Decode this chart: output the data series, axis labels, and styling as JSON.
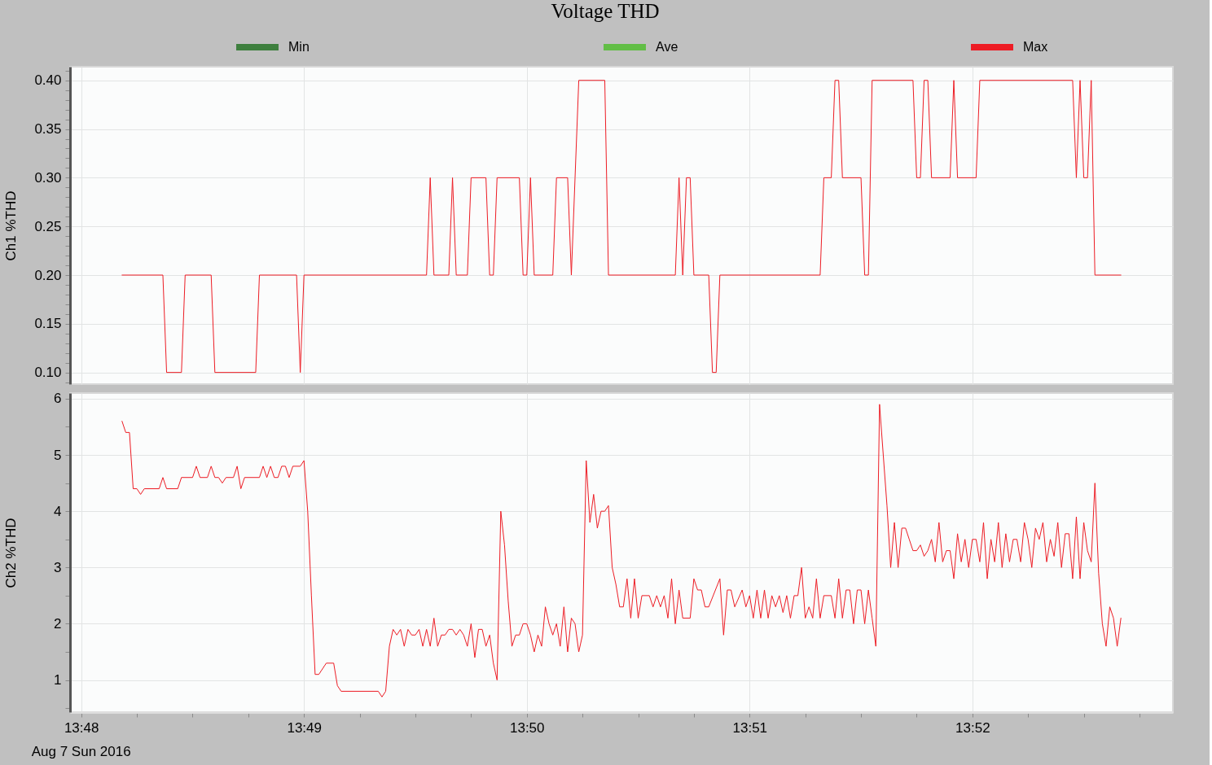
{
  "chart_data": [
    {
      "type": "line",
      "title": "Voltage THD",
      "ylabel": "Ch1 %THD",
      "x": [
        "2016-08-07T13:48:11",
        "2016-08-07T13:48:22",
        "2016-08-07T13:48:23",
        "2016-08-07T13:48:27",
        "2016-08-07T13:48:28",
        "2016-08-07T13:48:35",
        "2016-08-07T13:48:36",
        "2016-08-07T13:48:47",
        "2016-08-07T13:48:48",
        "2016-08-07T13:48:58",
        "2016-08-07T13:48:59",
        "2016-08-07T13:49:00",
        "2016-08-07T13:49:33",
        "2016-08-07T13:49:34",
        "2016-08-07T13:49:35",
        "2016-08-07T13:49:39",
        "2016-08-07T13:49:40",
        "2016-08-07T13:49:41",
        "2016-08-07T13:49:44",
        "2016-08-07T13:49:45",
        "2016-08-07T13:49:49",
        "2016-08-07T13:49:50",
        "2016-08-07T13:49:51",
        "2016-08-07T13:49:52",
        "2016-08-07T13:49:58",
        "2016-08-07T13:49:59",
        "2016-08-07T13:50:00",
        "2016-08-07T13:50:01",
        "2016-08-07T13:50:02",
        "2016-08-07T13:50:07",
        "2016-08-07T13:50:08",
        "2016-08-07T13:50:11",
        "2016-08-07T13:50:12",
        "2016-08-07T13:50:13",
        "2016-08-07T13:50:14",
        "2016-08-07T13:50:21",
        "2016-08-07T13:50:22",
        "2016-08-07T13:50:40",
        "2016-08-07T13:50:41",
        "2016-08-07T13:50:42",
        "2016-08-07T13:50:43",
        "2016-08-07T13:50:44",
        "2016-08-07T13:50:45",
        "2016-08-07T13:50:49",
        "2016-08-07T13:50:50",
        "2016-08-07T13:50:51",
        "2016-08-07T13:50:52",
        "2016-08-07T13:51:19",
        "2016-08-07T13:51:20",
        "2016-08-07T13:51:22",
        "2016-08-07T13:51:23",
        "2016-08-07T13:51:24",
        "2016-08-07T13:51:25",
        "2016-08-07T13:51:30",
        "2016-08-07T13:51:31",
        "2016-08-07T13:51:32",
        "2016-08-07T13:51:33",
        "2016-08-07T13:51:44",
        "2016-08-07T13:51:45",
        "2016-08-07T13:51:46",
        "2016-08-07T13:51:47",
        "2016-08-07T13:51:48",
        "2016-08-07T13:51:49",
        "2016-08-07T13:51:54",
        "2016-08-07T13:51:55",
        "2016-08-07T13:51:56",
        "2016-08-07T13:52:01",
        "2016-08-07T13:52:02",
        "2016-08-07T13:52:27",
        "2016-08-07T13:52:28",
        "2016-08-07T13:52:29",
        "2016-08-07T13:52:30",
        "2016-08-07T13:52:31",
        "2016-08-07T13:52:32",
        "2016-08-07T13:52:33",
        "2016-08-07T13:52:40"
      ],
      "series": [
        {
          "name": "Min",
          "color": "#3e7f3e",
          "values": [
            null,
            null,
            null,
            null,
            null,
            null,
            null,
            null,
            null,
            null,
            null,
            null,
            null,
            null,
            null,
            null,
            null,
            null,
            null,
            null,
            null,
            null,
            null,
            null,
            null,
            null,
            null,
            null,
            null,
            null,
            null,
            null,
            null,
            null,
            null,
            null,
            null,
            null,
            null,
            null,
            null,
            null,
            null,
            null,
            null,
            null,
            null,
            null,
            null,
            null,
            null,
            null,
            null,
            null,
            null,
            null,
            null,
            null,
            null,
            null,
            null,
            null,
            null,
            null,
            null,
            null,
            null,
            null,
            null,
            null,
            null,
            null,
            null,
            null,
            null,
            null
          ]
        },
        {
          "name": "Ave",
          "color": "#62be46",
          "values": [
            null,
            null,
            null,
            null,
            null,
            null,
            null,
            null,
            null,
            null,
            null,
            null,
            null,
            null,
            null,
            null,
            null,
            null,
            null,
            null,
            null,
            null,
            null,
            null,
            null,
            null,
            null,
            null,
            null,
            null,
            null,
            null,
            null,
            null,
            null,
            null,
            null,
            null,
            null,
            null,
            null,
            null,
            null,
            null,
            null,
            null,
            null,
            null,
            null,
            null,
            null,
            null,
            null,
            null,
            null,
            null,
            null,
            null,
            null,
            null,
            null,
            null,
            null,
            null,
            null,
            null,
            null,
            null,
            null,
            null,
            null,
            null,
            null,
            null,
            null,
            null
          ]
        },
        {
          "name": "Max",
          "color": "#ed1c24",
          "values": [
            0.2,
            0.2,
            0.1,
            0.1,
            0.2,
            0.2,
            0.1,
            0.1,
            0.2,
            0.2,
            0.1,
            0.2,
            0.2,
            0.3,
            0.2,
            0.2,
            0.3,
            0.2,
            0.2,
            0.3,
            0.3,
            0.2,
            0.2,
            0.3,
            0.3,
            0.2,
            0.2,
            0.3,
            0.2,
            0.2,
            0.3,
            0.3,
            0.2,
            0.3,
            0.4,
            0.4,
            0.2,
            0.2,
            0.3,
            0.2,
            0.3,
            0.3,
            0.2,
            0.2,
            0.1,
            0.1,
            0.2,
            0.2,
            0.3,
            0.3,
            0.4,
            0.4,
            0.3,
            0.3,
            0.2,
            0.2,
            0.4,
            0.4,
            0.3,
            0.3,
            0.4,
            0.4,
            0.3,
            0.3,
            0.4,
            0.3,
            0.3,
            0.4,
            0.4,
            0.3,
            0.4,
            0.3,
            0.3,
            0.4,
            0.2,
            0.2
          ]
        }
      ],
      "xlim": [
        "2016-08-07T13:47:57",
        "2016-08-07T13:52:54"
      ],
      "xticks": [
        {
          "value": "2016-08-07T13:48:00",
          "label": null
        },
        {
          "value": "2016-08-07T13:49:00",
          "label": null
        },
        {
          "value": "2016-08-07T13:50:00",
          "label": null
        },
        {
          "value": "2016-08-07T13:51:00",
          "label": null
        },
        {
          "value": "2016-08-07T13:52:00",
          "label": null
        }
      ],
      "ylim": [
        0.088,
        0.414
      ],
      "yticks": [
        {
          "value": 0.09,
          "label": null
        },
        {
          "value": 0.1,
          "label": "0.10"
        },
        {
          "value": 0.11,
          "label": null
        },
        {
          "value": 0.12,
          "label": null
        },
        {
          "value": 0.13,
          "label": null
        },
        {
          "value": 0.14,
          "label": null
        },
        {
          "value": 0.15,
          "label": "0.15"
        },
        {
          "value": 0.16,
          "label": null
        },
        {
          "value": 0.17,
          "label": null
        },
        {
          "value": 0.18,
          "label": null
        },
        {
          "value": 0.19,
          "label": null
        },
        {
          "value": 0.2,
          "label": "0.20"
        },
        {
          "value": 0.21,
          "label": null
        },
        {
          "value": 0.22,
          "label": null
        },
        {
          "value": 0.23,
          "label": null
        },
        {
          "value": 0.24,
          "label": null
        },
        {
          "value": 0.25,
          "label": "0.25"
        },
        {
          "value": 0.26,
          "label": null
        },
        {
          "value": 0.27,
          "label": null
        },
        {
          "value": 0.28,
          "label": null
        },
        {
          "value": 0.29,
          "label": null
        },
        {
          "value": 0.3,
          "label": "0.30"
        },
        {
          "value": 0.31,
          "label": null
        },
        {
          "value": 0.32,
          "label": null
        },
        {
          "value": 0.33,
          "label": null
        },
        {
          "value": 0.34,
          "label": null
        },
        {
          "value": 0.35,
          "label": "0.35"
        },
        {
          "value": 0.36,
          "label": null
        },
        {
          "value": 0.37,
          "label": null
        },
        {
          "value": 0.38,
          "label": null
        },
        {
          "value": 0.39,
          "label": null
        },
        {
          "value": 0.4,
          "label": "0.40"
        },
        {
          "value": 0.41,
          "label": null
        }
      ],
      "grid": true,
      "legend": "top",
      "tick_labels": "y"
    },
    {
      "type": "line",
      "ylabel": "Ch2 %THD",
      "annotations": [
        "Aug 7 Sun 2016"
      ],
      "x": [
        "2016-08-07T13:48:11",
        "2016-08-07T13:48:12",
        "2016-08-07T13:48:13",
        "2016-08-07T13:48:14",
        "2016-08-07T13:48:15",
        "2016-08-07T13:48:16",
        "2016-08-07T13:48:17",
        "2016-08-07T13:48:21",
        "2016-08-07T13:48:22",
        "2016-08-07T13:48:23",
        "2016-08-07T13:48:26",
        "2016-08-07T13:48:27",
        "2016-08-07T13:48:30",
        "2016-08-07T13:48:31",
        "2016-08-07T13:48:32",
        "2016-08-07T13:48:34",
        "2016-08-07T13:48:35",
        "2016-08-07T13:48:36",
        "2016-08-07T13:48:37",
        "2016-08-07T13:48:38",
        "2016-08-07T13:48:39",
        "2016-08-07T13:48:41",
        "2016-08-07T13:48:42",
        "2016-08-07T13:48:43",
        "2016-08-07T13:48:44",
        "2016-08-07T13:48:48",
        "2016-08-07T13:48:49",
        "2016-08-07T13:48:50",
        "2016-08-07T13:48:51",
        "2016-08-07T13:48:52",
        "2016-08-07T13:48:53",
        "2016-08-07T13:48:54",
        "2016-08-07T13:48:55",
        "2016-08-07T13:48:56",
        "2016-08-07T13:48:57",
        "2016-08-07T13:48:59",
        "2016-08-07T13:49:00",
        "2016-08-07T13:49:01",
        "2016-08-07T13:49:02",
        "2016-08-07T13:49:03",
        "2016-08-07T13:49:04",
        "2016-08-07T13:49:06",
        "2016-08-07T13:49:08",
        "2016-08-07T13:49:09",
        "2016-08-07T13:49:10",
        "2016-08-07T13:49:20",
        "2016-08-07T13:49:21",
        "2016-08-07T13:49:22",
        "2016-08-07T13:49:23",
        "2016-08-07T13:49:24",
        "2016-08-07T13:49:25",
        "2016-08-07T13:49:26",
        "2016-08-07T13:49:27",
        "2016-08-07T13:49:28",
        "2016-08-07T13:49:29",
        "2016-08-07T13:49:30",
        "2016-08-07T13:49:31",
        "2016-08-07T13:49:32",
        "2016-08-07T13:49:33",
        "2016-08-07T13:49:34",
        "2016-08-07T13:49:35",
        "2016-08-07T13:49:36",
        "2016-08-07T13:49:37",
        "2016-08-07T13:49:38",
        "2016-08-07T13:49:39",
        "2016-08-07T13:49:40",
        "2016-08-07T13:49:41",
        "2016-08-07T13:49:42",
        "2016-08-07T13:49:43",
        "2016-08-07T13:49:44",
        "2016-08-07T13:49:45",
        "2016-08-07T13:49:46",
        "2016-08-07T13:49:47",
        "2016-08-07T13:49:48",
        "2016-08-07T13:49:49",
        "2016-08-07T13:49:50",
        "2016-08-07T13:49:51",
        "2016-08-07T13:49:52",
        "2016-08-07T13:49:53",
        "2016-08-07T13:49:54",
        "2016-08-07T13:49:55",
        "2016-08-07T13:49:56",
        "2016-08-07T13:49:57",
        "2016-08-07T13:49:58",
        "2016-08-07T13:49:59",
        "2016-08-07T13:50:00",
        "2016-08-07T13:50:01",
        "2016-08-07T13:50:02",
        "2016-08-07T13:50:03",
        "2016-08-07T13:50:04",
        "2016-08-07T13:50:05",
        "2016-08-07T13:50:06",
        "2016-08-07T13:50:07",
        "2016-08-07T13:50:08",
        "2016-08-07T13:50:09",
        "2016-08-07T13:50:10",
        "2016-08-07T13:50:11",
        "2016-08-07T13:50:12",
        "2016-08-07T13:50:13",
        "2016-08-07T13:50:14",
        "2016-08-07T13:50:15",
        "2016-08-07T13:50:16",
        "2016-08-07T13:50:17",
        "2016-08-07T13:50:18",
        "2016-08-07T13:50:19",
        "2016-08-07T13:50:20",
        "2016-08-07T13:50:21",
        "2016-08-07T13:50:22",
        "2016-08-07T13:50:23",
        "2016-08-07T13:50:24",
        "2016-08-07T13:50:25",
        "2016-08-07T13:50:26",
        "2016-08-07T13:50:27",
        "2016-08-07T13:50:28",
        "2016-08-07T13:50:29",
        "2016-08-07T13:50:30",
        "2016-08-07T13:50:31",
        "2016-08-07T13:50:33",
        "2016-08-07T13:50:34",
        "2016-08-07T13:50:35",
        "2016-08-07T13:50:36",
        "2016-08-07T13:50:37",
        "2016-08-07T13:50:38",
        "2016-08-07T13:50:39",
        "2016-08-07T13:50:40",
        "2016-08-07T13:50:41",
        "2016-08-07T13:50:42",
        "2016-08-07T13:50:44",
        "2016-08-07T13:50:45",
        "2016-08-07T13:50:46",
        "2016-08-07T13:50:47",
        "2016-08-07T13:50:48",
        "2016-08-07T13:50:49",
        "2016-08-07T13:50:52",
        "2016-08-07T13:50:53",
        "2016-08-07T13:50:54",
        "2016-08-07T13:50:55",
        "2016-08-07T13:50:56",
        "2016-08-07T13:50:58",
        "2016-08-07T13:50:59",
        "2016-08-07T13:51:00",
        "2016-08-07T13:51:01",
        "2016-08-07T13:51:02",
        "2016-08-07T13:51:03",
        "2016-08-07T13:51:04",
        "2016-08-07T13:51:05",
        "2016-08-07T13:51:06",
        "2016-08-07T13:51:07",
        "2016-08-07T13:51:08",
        "2016-08-07T13:51:09",
        "2016-08-07T13:51:10",
        "2016-08-07T13:51:11",
        "2016-08-07T13:51:12",
        "2016-08-07T13:51:13",
        "2016-08-07T13:51:14",
        "2016-08-07T13:51:15",
        "2016-08-07T13:51:16",
        "2016-08-07T13:51:17",
        "2016-08-07T13:51:18",
        "2016-08-07T13:51:19",
        "2016-08-07T13:51:20",
        "2016-08-07T13:51:22",
        "2016-08-07T13:51:23",
        "2016-08-07T13:51:24",
        "2016-08-07T13:51:25",
        "2016-08-07T13:51:26",
        "2016-08-07T13:51:27",
        "2016-08-07T13:51:28",
        "2016-08-07T13:51:29",
        "2016-08-07T13:51:30",
        "2016-08-07T13:51:31",
        "2016-08-07T13:51:32",
        "2016-08-07T13:51:33",
        "2016-08-07T13:51:34",
        "2016-08-07T13:51:35",
        "2016-08-07T13:51:36",
        "2016-08-07T13:51:37",
        "2016-08-07T13:51:38",
        "2016-08-07T13:51:39",
        "2016-08-07T13:51:40",
        "2016-08-07T13:51:41",
        "2016-08-07T13:51:42",
        "2016-08-07T13:51:43",
        "2016-08-07T13:51:44",
        "2016-08-07T13:51:45",
        "2016-08-07T13:51:46",
        "2016-08-07T13:51:47",
        "2016-08-07T13:51:48",
        "2016-08-07T13:51:49",
        "2016-08-07T13:51:50",
        "2016-08-07T13:51:51",
        "2016-08-07T13:51:52",
        "2016-08-07T13:51:53",
        "2016-08-07T13:51:54",
        "2016-08-07T13:51:55",
        "2016-08-07T13:51:56",
        "2016-08-07T13:51:57",
        "2016-08-07T13:51:58",
        "2016-08-07T13:51:59",
        "2016-08-07T13:52:00",
        "2016-08-07T13:52:01",
        "2016-08-07T13:52:02",
        "2016-08-07T13:52:03",
        "2016-08-07T13:52:04",
        "2016-08-07T13:52:05",
        "2016-08-07T13:52:06",
        "2016-08-07T13:52:07",
        "2016-08-07T13:52:08",
        "2016-08-07T13:52:09",
        "2016-08-07T13:52:10",
        "2016-08-07T13:52:11",
        "2016-08-07T13:52:12",
        "2016-08-07T13:52:13",
        "2016-08-07T13:52:14",
        "2016-08-07T13:52:15",
        "2016-08-07T13:52:16",
        "2016-08-07T13:52:17",
        "2016-08-07T13:52:18",
        "2016-08-07T13:52:19",
        "2016-08-07T13:52:20",
        "2016-08-07T13:52:21",
        "2016-08-07T13:52:22",
        "2016-08-07T13:52:23",
        "2016-08-07T13:52:24",
        "2016-08-07T13:52:25",
        "2016-08-07T13:52:26",
        "2016-08-07T13:52:27",
        "2016-08-07T13:52:28",
        "2016-08-07T13:52:29",
        "2016-08-07T13:52:30",
        "2016-08-07T13:52:31",
        "2016-08-07T13:52:32",
        "2016-08-07T13:52:33",
        "2016-08-07T13:52:34",
        "2016-08-07T13:52:35",
        "2016-08-07T13:52:36",
        "2016-08-07T13:52:37",
        "2016-08-07T13:52:38",
        "2016-08-07T13:52:39",
        "2016-08-07T13:52:40"
      ],
      "series": [
        {
          "name": "Max",
          "color": "#ed1c24",
          "values": [
            5.6,
            5.4,
            5.4,
            4.4,
            4.4,
            4.3,
            4.4,
            4.4,
            4.6,
            4.4,
            4.4,
            4.6,
            4.6,
            4.8,
            4.6,
            4.6,
            4.8,
            4.6,
            4.6,
            4.5,
            4.6,
            4.6,
            4.8,
            4.4,
            4.6,
            4.6,
            4.8,
            4.6,
            4.8,
            4.6,
            4.6,
            4.8,
            4.8,
            4.6,
            4.8,
            4.8,
            4.9,
            4.0,
            2.5,
            1.1,
            1.1,
            1.3,
            1.3,
            0.9,
            0.8,
            0.8,
            0.7,
            0.8,
            1.6,
            1.9,
            1.8,
            1.9,
            1.6,
            1.9,
            1.8,
            1.8,
            1.9,
            1.6,
            1.9,
            1.6,
            2.1,
            1.6,
            1.8,
            1.8,
            1.9,
            1.9,
            1.8,
            1.9,
            1.8,
            1.6,
            2.0,
            1.4,
            1.9,
            1.9,
            1.6,
            1.8,
            1.3,
            1.0,
            4.0,
            3.4,
            2.4,
            1.6,
            1.8,
            1.8,
            2.0,
            2.0,
            1.8,
            1.5,
            1.8,
            1.6,
            2.3,
            2.0,
            1.8,
            2.0,
            1.6,
            2.3,
            1.5,
            2.1,
            2.0,
            1.5,
            1.8,
            4.9,
            3.8,
            4.3,
            3.7,
            4.0,
            4.0,
            4.1,
            3.0,
            2.7,
            2.3,
            2.3,
            2.8,
            2.1,
            2.8,
            2.1,
            2.5,
            2.5,
            2.3,
            2.5,
            2.3,
            2.5,
            2.1,
            2.8,
            2.0,
            2.6,
            2.1,
            2.1,
            2.8,
            2.6,
            2.6,
            2.3,
            2.3,
            2.8,
            1.8,
            2.6,
            2.6,
            2.3,
            2.6,
            2.3,
            2.5,
            2.1,
            2.6,
            2.1,
            2.6,
            2.1,
            2.5,
            2.3,
            2.5,
            2.2,
            2.5,
            2.1,
            2.5,
            2.5,
            3.0,
            2.1,
            2.3,
            2.1,
            2.8,
            2.1,
            2.5,
            2.5,
            2.1,
            2.8,
            2.1,
            2.6,
            2.6,
            2.0,
            2.6,
            2.6,
            2.0,
            2.6,
            2.1,
            1.6,
            5.9,
            5.0,
            4.1,
            3.0,
            3.8,
            3.0,
            3.7,
            3.7,
            3.5,
            3.3,
            3.3,
            3.4,
            3.2,
            3.3,
            3.5,
            3.1,
            3.8,
            3.1,
            3.3,
            3.3,
            2.8,
            3.6,
            3.1,
            3.5,
            3.0,
            3.5,
            3.5,
            3.1,
            3.8,
            2.8,
            3.5,
            3.1,
            3.8,
            3.0,
            3.6,
            3.1,
            3.5,
            3.5,
            3.1,
            3.8,
            3.5,
            3.0,
            3.7,
            3.5,
            3.8,
            3.1,
            3.5,
            3.2,
            3.8,
            3.0,
            3.6,
            3.6,
            2.8,
            3.9,
            2.8,
            3.8,
            3.3,
            3.1,
            4.5,
            2.9,
            2.0,
            1.6,
            2.3,
            2.1,
            1.6,
            2.1
          ]
        }
      ],
      "xlim": [
        "2016-08-07T13:47:57",
        "2016-08-07T13:52:54"
      ],
      "xticks": [
        {
          "value": "2016-08-07T13:48:00",
          "label": "13:48"
        },
        {
          "value": "2016-08-07T13:48:15",
          "label": null
        },
        {
          "value": "2016-08-07T13:48:30",
          "label": null
        },
        {
          "value": "2016-08-07T13:48:45",
          "label": null
        },
        {
          "value": "2016-08-07T13:49:00",
          "label": "13:49"
        },
        {
          "value": "2016-08-07T13:49:15",
          "label": null
        },
        {
          "value": "2016-08-07T13:49:30",
          "label": null
        },
        {
          "value": "2016-08-07T13:49:45",
          "label": null
        },
        {
          "value": "2016-08-07T13:50:00",
          "label": "13:50"
        },
        {
          "value": "2016-08-07T13:50:15",
          "label": null
        },
        {
          "value": "2016-08-07T13:50:30",
          "label": null
        },
        {
          "value": "2016-08-07T13:50:45",
          "label": null
        },
        {
          "value": "2016-08-07T13:51:00",
          "label": "13:51"
        },
        {
          "value": "2016-08-07T13:51:15",
          "label": null
        },
        {
          "value": "2016-08-07T13:51:30",
          "label": null
        },
        {
          "value": "2016-08-07T13:51:45",
          "label": null
        },
        {
          "value": "2016-08-07T13:52:00",
          "label": "13:52"
        },
        {
          "value": "2016-08-07T13:52:15",
          "label": null
        },
        {
          "value": "2016-08-07T13:52:30",
          "label": null
        },
        {
          "value": "2016-08-07T13:52:45",
          "label": null
        }
      ],
      "ylim": [
        0.43,
        6.1
      ],
      "yticks": [
        {
          "value": 0.5,
          "label": null
        },
        1,
        {
          "value": 1.5,
          "label": null
        },
        2,
        {
          "value": 2.5,
          "label": null
        },
        3,
        {
          "value": 3.5,
          "label": null
        },
        4,
        {
          "value": 4.5,
          "label": null
        },
        5,
        {
          "value": 5.5,
          "label": null
        },
        6
      ],
      "grid": true
    }
  ]
}
